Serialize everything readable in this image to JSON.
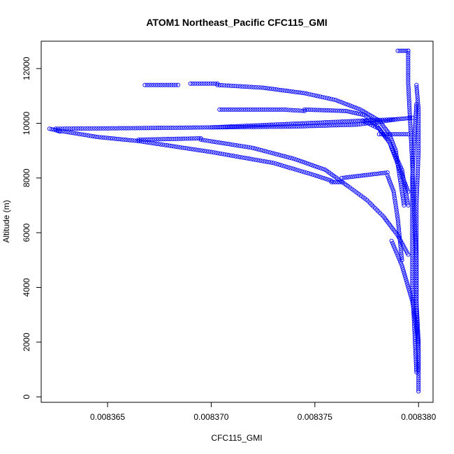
{
  "chart_data": {
    "type": "scatter",
    "title": "ATOM1 Northeast_Pacific CFC115_GMI",
    "xlabel": "CFC115_GMI",
    "ylabel": "Altitude (m)",
    "xlim": [
      0.0083618,
      0.0083807
    ],
    "ylim": [
      -200,
      13000
    ],
    "x_ticks": [
      0.008365,
      0.00837,
      0.008375,
      0.00838
    ],
    "x_tick_labels": [
      "0.008365",
      "0.008370",
      "0.008375",
      "0.008380"
    ],
    "y_ticks": [
      0,
      2000,
      4000,
      6000,
      8000,
      10000,
      12000
    ],
    "y_tick_labels": [
      "0",
      "2000",
      "4000",
      "6000",
      "8000",
      "10000",
      "12000"
    ],
    "marker": "open-circle",
    "color": "#0000ff",
    "grid": false,
    "series": [
      {
        "segments": [
          [
            [
              0.00838,
              200
            ],
            [
              0.00838,
              1500
            ],
            [
              0.0083799,
              3000
            ],
            [
              0.0083799,
              5000
            ],
            [
              0.0083799,
              7000
            ],
            [
              0.00838,
              9000
            ],
            [
              0.00838,
              10500
            ],
            [
              0.0083799,
              11400
            ]
          ],
          [
            [
              0.0083799,
              900
            ],
            [
              0.0083798,
              2500
            ],
            [
              0.0083797,
              4000
            ],
            [
              0.0083797,
              6000
            ],
            [
              0.0083797,
              8000
            ],
            [
              0.0083798,
              9500
            ],
            [
              0.0083799,
              10700
            ]
          ],
          [
            [
              0.008379,
              12650
            ],
            [
              0.0083795,
              12650
            ]
          ],
          [
            [
              0.0083795,
              12650
            ],
            [
              0.0083795,
              11500
            ],
            [
              0.0083796,
              10000
            ],
            [
              0.0083797,
              8500
            ],
            [
              0.0083798,
              6500
            ],
            [
              0.0083799,
              5000
            ],
            [
              0.0083799,
              3500
            ],
            [
              0.00838,
              2000
            ],
            [
              0.00838,
              1000
            ]
          ],
          [
            [
              0.0083668,
              11400
            ],
            [
              0.0083684,
              11400
            ]
          ],
          [
            [
              0.008369,
              11450
            ],
            [
              0.0083703,
              11450
            ]
          ],
          [
            [
              0.0083703,
              11400
            ],
            [
              0.0083725,
              11300
            ],
            [
              0.0083745,
              11100
            ],
            [
              0.008376,
              10850
            ],
            [
              0.0083772,
              10500
            ],
            [
              0.0083781,
              10100
            ],
            [
              0.0083786,
              9600
            ],
            [
              0.0083789,
              9000
            ],
            [
              0.0083791,
              8000
            ],
            [
              0.0083793,
              7000
            ]
          ],
          [
            [
              0.0083704,
              10500
            ],
            [
              0.0083735,
              10500
            ],
            [
              0.0083745,
              10450
            ]
          ],
          [
            [
              0.0083745,
              10500
            ],
            [
              0.0083765,
              10450
            ],
            [
              0.0083774,
              10300
            ],
            [
              0.008378,
              9900
            ],
            [
              0.0083786,
              9300
            ],
            [
              0.0083792,
              8300
            ],
            [
              0.0083795,
              7000
            ]
          ],
          [
            [
              0.0083622,
              9800
            ],
            [
              0.0083625,
              9750
            ],
            [
              0.0083627,
              9700
            ]
          ],
          [
            [
              0.0083625,
              9800
            ],
            [
              0.008366,
              9820
            ],
            [
              0.00837,
              9850
            ],
            [
              0.008374,
              9880
            ],
            [
              0.008377,
              9950
            ],
            [
              0.0083781,
              10050
            ],
            [
              0.008379,
              10150
            ]
          ],
          [
            [
              0.0083625,
              9750
            ],
            [
              0.0083645,
              9500
            ],
            [
              0.0083665,
              9350
            ]
          ],
          [
            [
              0.0083665,
              9400
            ],
            [
              0.0083695,
              9450
            ]
          ],
          [
            [
              0.0083695,
              9400
            ],
            [
              0.008372,
              9100
            ],
            [
              0.008374,
              8700
            ],
            [
              0.0083755,
              8300
            ],
            [
              0.0083766,
              7700
            ],
            [
              0.0083775,
              7200
            ],
            [
              0.0083783,
              6600
            ],
            [
              0.008379,
              5900
            ],
            [
              0.0083795,
              5200
            ]
          ],
          [
            [
              0.0083665,
              9350
            ],
            [
              0.00837,
              8950
            ],
            [
              0.008373,
              8550
            ],
            [
              0.008375,
              8100
            ],
            [
              0.0083758,
              7900
            ]
          ],
          [
            [
              0.0083758,
              7850
            ],
            [
              0.0083763,
              7850
            ]
          ],
          [
            [
              0.0083763,
              8000
            ],
            [
              0.0083785,
              8200
            ]
          ],
          [
            [
              0.0083785,
              8100
            ],
            [
              0.0083788,
              7500
            ],
            [
              0.008379,
              6500
            ],
            [
              0.0083792,
              5000
            ]
          ],
          [
            [
              0.0083773,
              10100
            ],
            [
              0.0083781,
              9800
            ],
            [
              0.0083786,
              9300
            ],
            [
              0.008379,
              8500
            ],
            [
              0.0083795,
              7500
            ]
          ],
          [
            [
              0.00837,
              9850
            ],
            [
              0.008379,
              10150
            ],
            [
              0.0083797,
              10200
            ]
          ],
          [
            [
              0.0083781,
              9600
            ],
            [
              0.0083795,
              9600
            ]
          ],
          [
            [
              0.0083787,
              5700
            ],
            [
              0.0083792,
              4800
            ],
            [
              0.0083797,
              3500
            ],
            [
              0.00838,
              2000
            ]
          ]
        ]
      }
    ]
  }
}
